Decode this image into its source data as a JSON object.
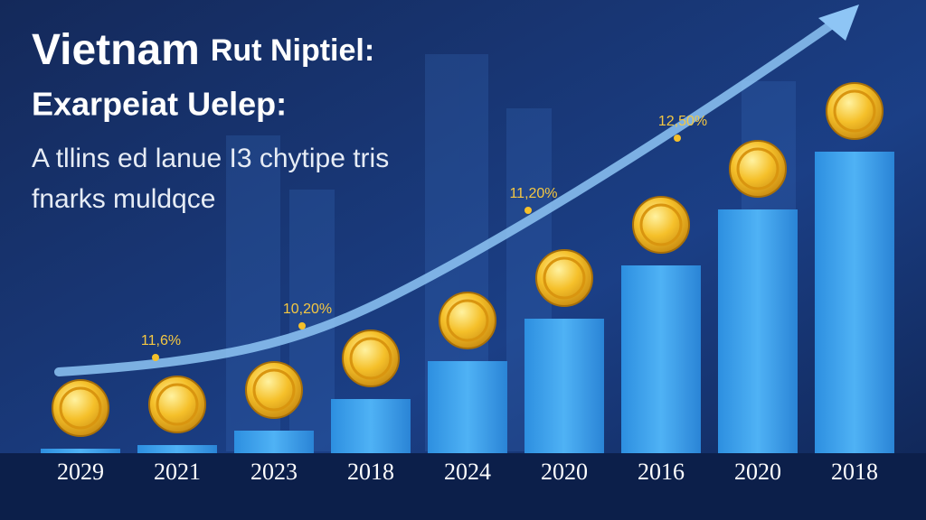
{
  "chart_data": {
    "type": "bar",
    "title": "Vietnam",
    "title_continued": "Rut Niptiel:",
    "subtitle": "Exarpeiat Uelep:",
    "description": [
      "A tllins ed lanue I3 chytipe tris",
      "fnarks muldqce"
    ],
    "categories": [
      "2029",
      "2021",
      "2023",
      "2018",
      "2024",
      "2020",
      "2016",
      "2020",
      "2018"
    ],
    "values": [
      5,
      9,
      25,
      60,
      102,
      149,
      208,
      270,
      334
    ],
    "ylim": [
      0,
      340
    ],
    "color": "#3a9ee8",
    "annotations": [
      "11,6%",
      "10,20%",
      "11,20%",
      "12,50%"
    ]
  }
}
